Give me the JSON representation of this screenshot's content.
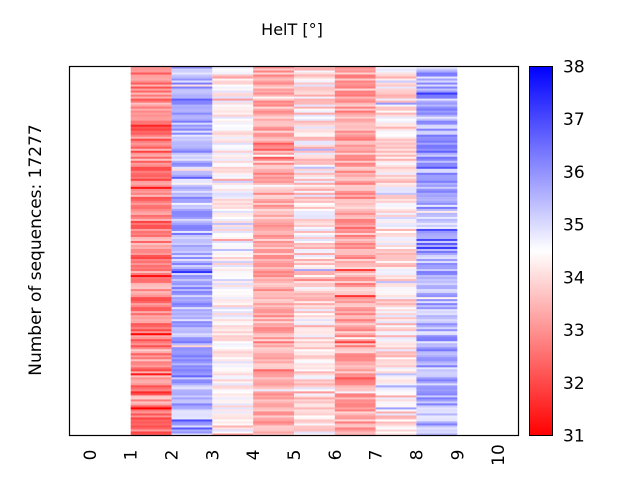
{
  "chart_data": {
    "type": "heatmap",
    "title": "HelT [°]",
    "xlabel": "",
    "ylabel": "Number of sequences: 17277",
    "xlim": [
      -0.5,
      10.5
    ],
    "x_ticks": [
      "0",
      "1",
      "2",
      "3",
      "4",
      "5",
      "6",
      "7",
      "8",
      "9",
      "10"
    ],
    "x_tick_rotation": "vertical",
    "columns": [
      {
        "x_start": 1,
        "x_end": 2,
        "mean": 32.8,
        "spread": 0.9,
        "red_bias": 0.55
      },
      {
        "x_start": 2,
        "x_end": 3,
        "mean": 35.6,
        "spread": 0.8,
        "red_bias": 0.15
      },
      {
        "x_start": 3,
        "x_end": 4,
        "mean": 34.4,
        "spread": 0.6,
        "red_bias": 0.3
      },
      {
        "x_start": 4,
        "x_end": 5,
        "mean": 33.4,
        "spread": 0.6,
        "red_bias": 0.45
      },
      {
        "x_start": 5,
        "x_end": 6,
        "mean": 34.1,
        "spread": 0.8,
        "red_bias": 0.35
      },
      {
        "x_start": 6,
        "x_end": 7,
        "mean": 33.3,
        "spread": 0.7,
        "red_bias": 0.45
      },
      {
        "x_start": 7,
        "x_end": 8,
        "mean": 34.1,
        "spread": 0.8,
        "red_bias": 0.35
      },
      {
        "x_start": 8,
        "x_end": 9,
        "mean": 35.6,
        "spread": 0.8,
        "red_bias": 0.15
      }
    ],
    "n_sequences": 17277,
    "colorbar": {
      "min": 31,
      "max": 38,
      "ticks": [
        "31",
        "32",
        "33",
        "34",
        "35",
        "36",
        "37",
        "38"
      ],
      "colormap": "bwr_reversed",
      "low_color": "#ff0000",
      "mid_color": "#ffffff",
      "high_color": "#0000ff",
      "mid_value": 34.5
    },
    "grid": false,
    "legend": "none"
  }
}
